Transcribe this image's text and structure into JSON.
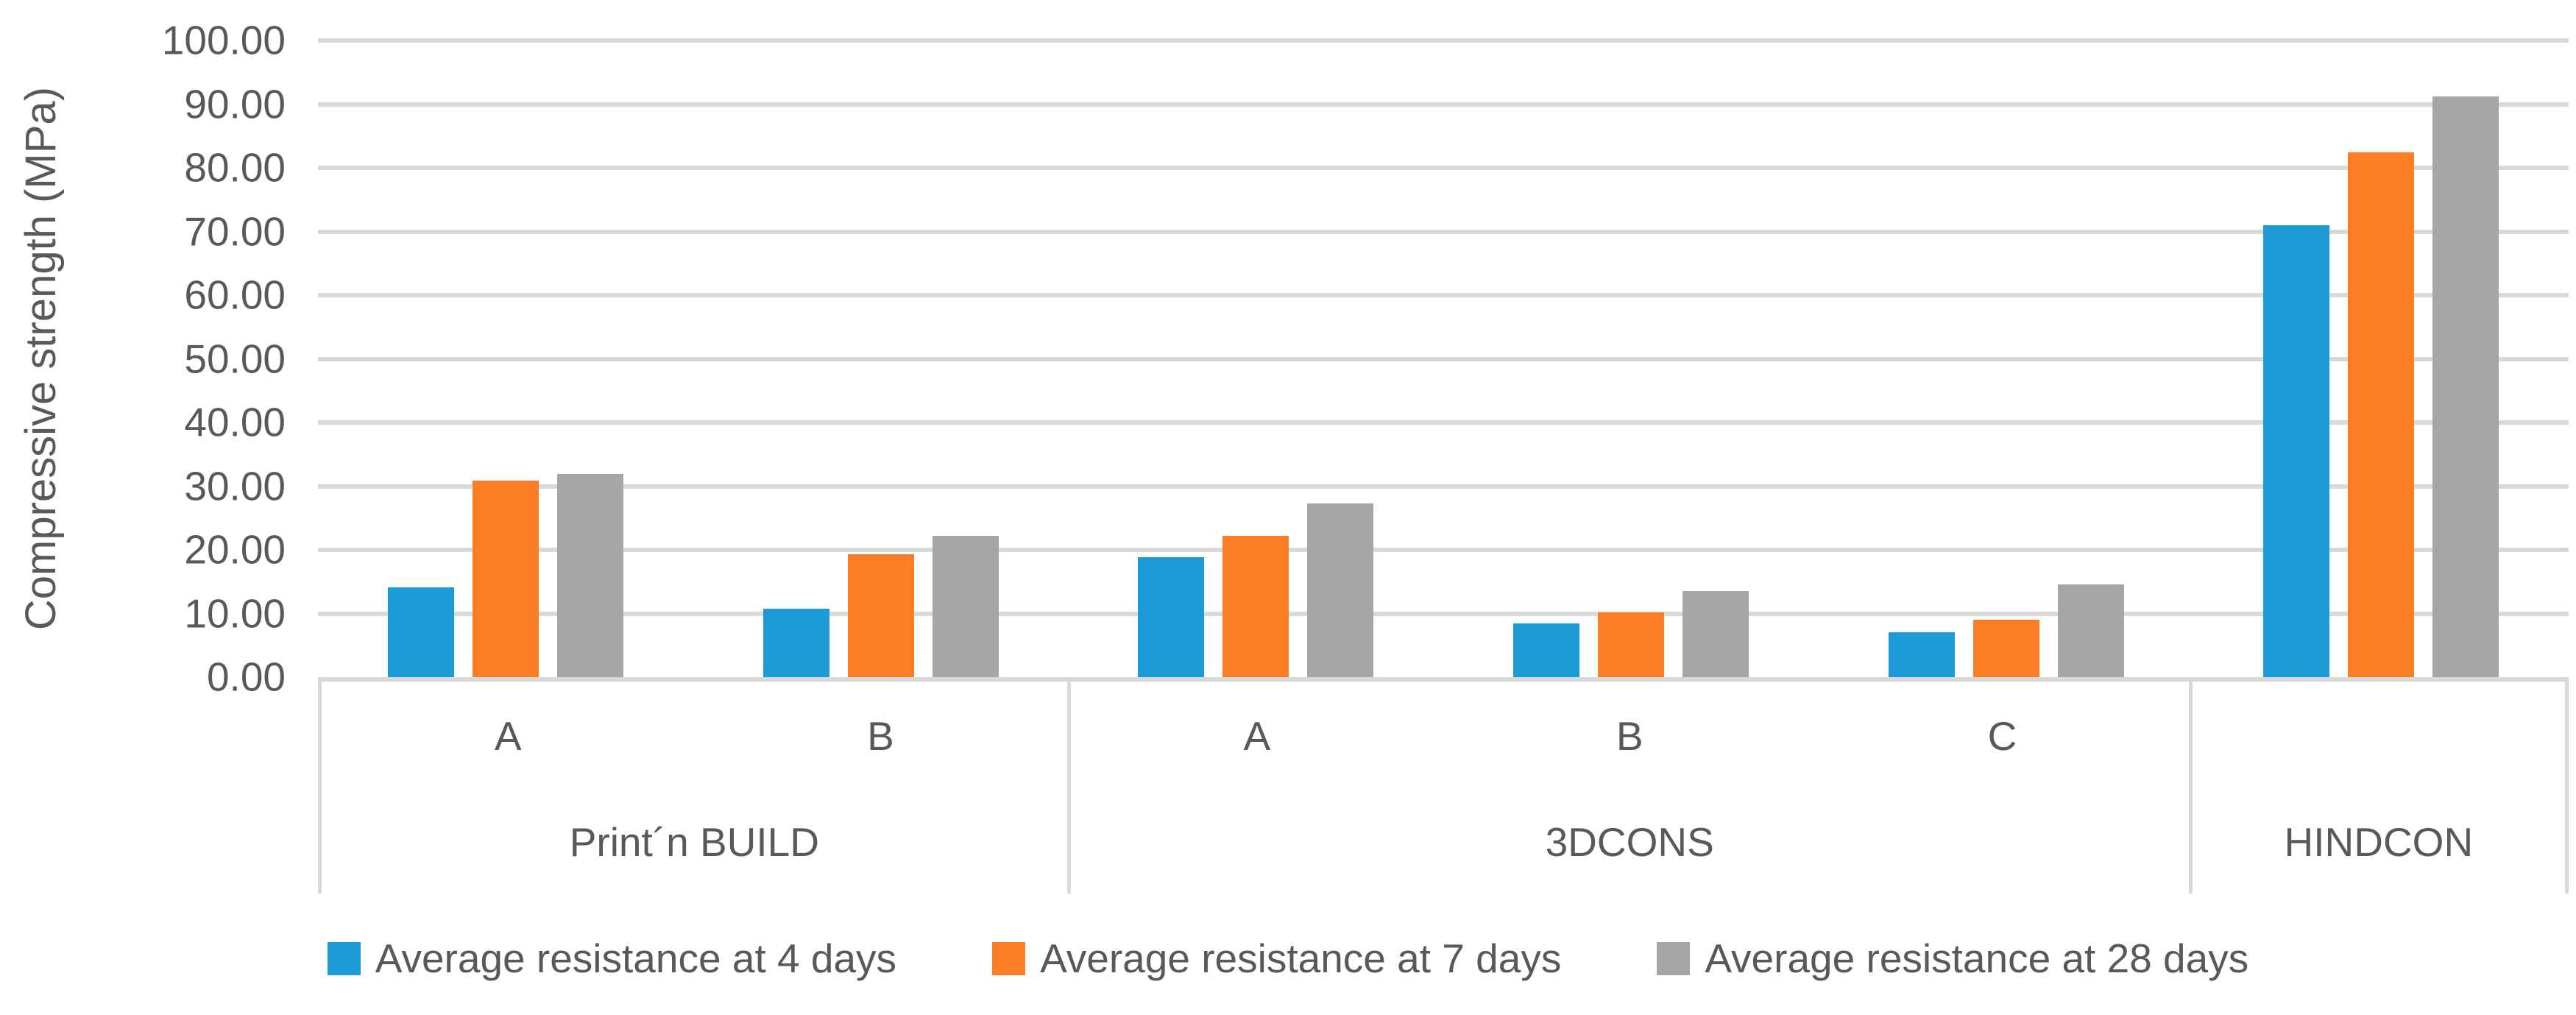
{
  "chart_data": {
    "type": "bar",
    "title": "",
    "ylabel": "Compressive strength (MPa)",
    "xlabel": "",
    "ylim": [
      0,
      100
    ],
    "ytick_step": 10,
    "yticks": [
      "100.00",
      "90.00",
      "80.00",
      "70.00",
      "60.00",
      "50.00",
      "40.00",
      "30.00",
      "20.00",
      "10.00",
      "0.00"
    ],
    "grid": true,
    "legend_position": "bottom",
    "groups": [
      {
        "label": "Print´n BUILD",
        "categories": [
          "A",
          "B"
        ]
      },
      {
        "label": "3DCONS",
        "categories": [
          "A",
          "B",
          "C"
        ]
      },
      {
        "label": "HINDCON",
        "categories": [
          ""
        ]
      }
    ],
    "series": [
      {
        "name": "Average resistance at 4 days",
        "color": "#1E9AD6",
        "values": [
          14.1,
          10.7,
          18.8,
          8.4,
          7.0,
          71.0
        ]
      },
      {
        "name": "Average resistance at 7 days",
        "color": "#FB7E26",
        "values": [
          30.9,
          19.3,
          22.2,
          10.2,
          9.0,
          82.4
        ]
      },
      {
        "name": "Average resistance at 28 days",
        "color": "#A6A6A6",
        "values": [
          31.9,
          22.2,
          27.3,
          13.5,
          14.6,
          91.2
        ]
      }
    ],
    "colors": {
      "text": "#595959",
      "gridline": "#D9D9D9",
      "axis_line": "#D9D9D9",
      "background": "#FFFFFF"
    }
  }
}
